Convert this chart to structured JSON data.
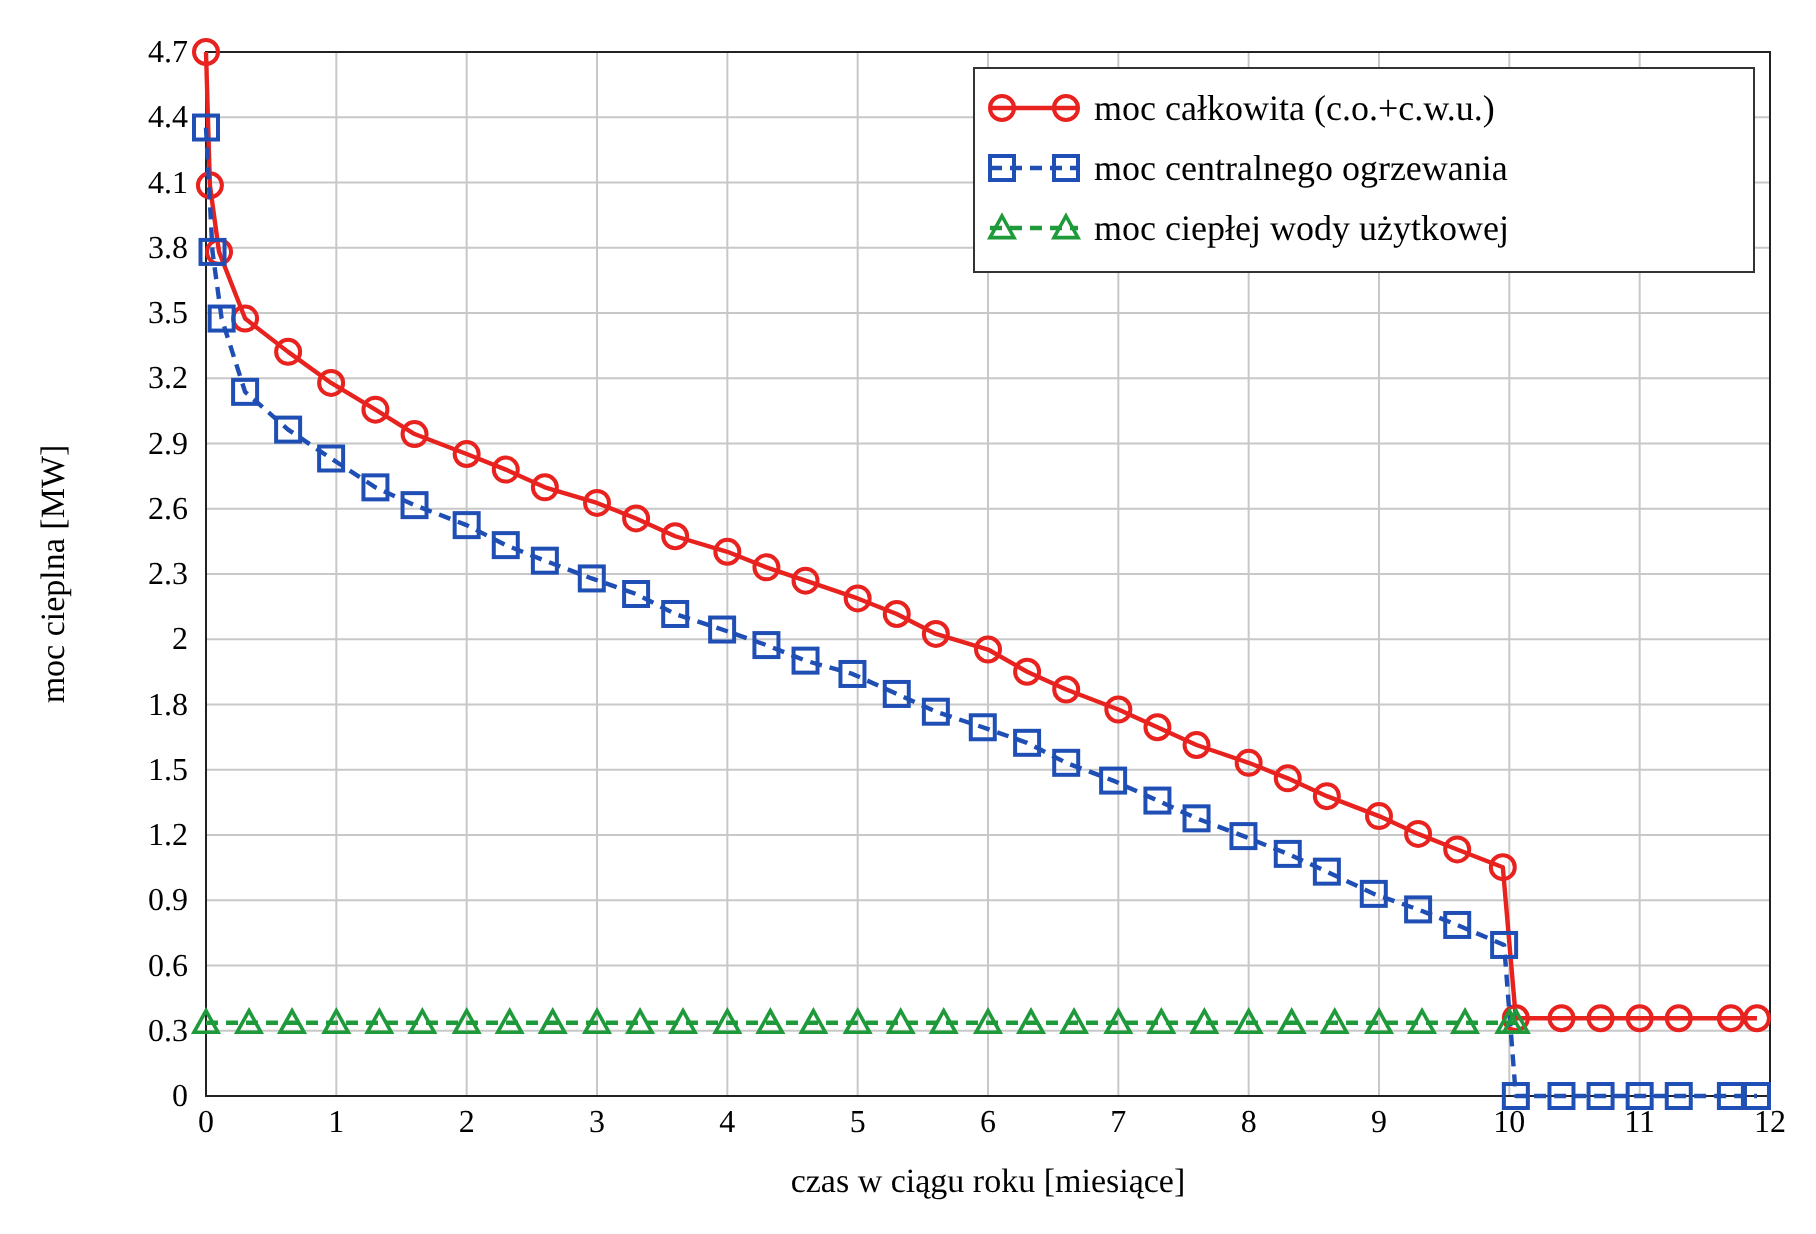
{
  "chart_data": {
    "type": "line",
    "xlabel": "czas w ciągu roku [miesiące]",
    "ylabel": "moc cieplna [MW]",
    "xlim": [
      0,
      12
    ],
    "ylim": [
      0,
      4.7
    ],
    "xticks": [
      0,
      1,
      2,
      3,
      4,
      5,
      6,
      7,
      8,
      9,
      10,
      11,
      12
    ],
    "yticks": [
      0,
      {
        "value": 0.2938,
        "label": "0.3"
      },
      {
        "value": 0.5875,
        "label": "0.6"
      },
      {
        "value": 0.8813,
        "label": "0.9"
      },
      {
        "value": 1.175,
        "label": "1.2"
      },
      {
        "value": 1.4688,
        "label": "1.5"
      },
      {
        "value": 1.7625,
        "label": "1.8"
      },
      {
        "value": 2.0563,
        "label": "2"
      },
      {
        "value": 2.35,
        "label": "2.3"
      },
      {
        "value": 2.6438,
        "label": "2.6"
      },
      {
        "value": 2.9375,
        "label": "2.9"
      },
      {
        "value": 3.2313,
        "label": "3.2"
      },
      {
        "value": 3.525,
        "label": "3.5"
      },
      {
        "value": 3.8188,
        "label": "3.8"
      },
      {
        "value": 4.1125,
        "label": "4.1"
      },
      {
        "value": 4.4063,
        "label": "4.4"
      },
      {
        "value": 4.7,
        "label": "4.7"
      }
    ],
    "grid": true,
    "legend": "top right",
    "series": [
      {
        "name": "moc całkowita (c.o.+c.w.u.)",
        "color": "#e8231f",
        "marker": "circle",
        "line_style": "solid",
        "x": [
          0,
          0.03,
          0.1,
          0.3,
          0.63,
          0.96,
          1.3,
          1.6,
          2,
          2.3,
          2.6,
          3,
          3.3,
          3.6,
          4,
          4.3,
          4.6,
          5,
          5.3,
          5.6,
          6,
          6.3,
          6.6,
          7,
          7.3,
          7.6,
          8,
          8.3,
          8.6,
          9,
          9.3,
          9.6,
          9.95,
          10.05,
          10.4,
          10.7,
          11,
          11.3,
          11.7,
          11.9
        ],
        "values": [
          4.7,
          4.1,
          3.8,
          3.5,
          3.35,
          3.21,
          3.09,
          2.98,
          2.89,
          2.82,
          2.74,
          2.67,
          2.6,
          2.52,
          2.45,
          2.38,
          2.32,
          2.24,
          2.17,
          2.08,
          2.01,
          1.91,
          1.83,
          1.74,
          1.66,
          1.58,
          1.5,
          1.43,
          1.35,
          1.26,
          1.18,
          1.11,
          1.03,
          0.35,
          0.35,
          0.35,
          0.35,
          0.35,
          0.35,
          0.35
        ]
      },
      {
        "name": "moc centralnego ogrzewania",
        "color": "#1f4fb4",
        "marker": "square",
        "line_style": "dashed",
        "x": [
          0,
          0.05,
          0.12,
          0.3,
          0.63,
          0.96,
          1.3,
          1.6,
          2,
          2.3,
          2.6,
          2.96,
          3.3,
          3.6,
          3.96,
          4.3,
          4.6,
          4.96,
          5.3,
          5.6,
          5.96,
          6.3,
          6.6,
          6.96,
          7.3,
          7.6,
          7.96,
          8.3,
          8.6,
          8.96,
          9.3,
          9.6,
          9.96,
          10.05,
          10.4,
          10.7,
          11,
          11.3,
          11.7,
          11.9
        ],
        "values": [
          4.36,
          3.8,
          3.5,
          3.17,
          3,
          2.87,
          2.74,
          2.66,
          2.57,
          2.48,
          2.41,
          2.33,
          2.26,
          2.17,
          2.1,
          2.03,
          1.96,
          1.9,
          1.81,
          1.73,
          1.66,
          1.59,
          1.5,
          1.42,
          1.33,
          1.25,
          1.17,
          1.09,
          1.01,
          0.91,
          0.84,
          0.77,
          0.68,
          0,
          0,
          0,
          0,
          0,
          0,
          0
        ]
      },
      {
        "name": "moc ciepłej wody użytkowej",
        "color": "#1f9a3a",
        "marker": "triangle",
        "line_style": "dashed",
        "x": [
          0,
          0.33,
          0.66,
          1,
          1.33,
          1.66,
          2,
          2.33,
          2.66,
          3,
          3.33,
          3.66,
          4,
          4.33,
          4.66,
          5,
          5.33,
          5.66,
          6,
          6.33,
          6.66,
          7,
          7.33,
          7.66,
          8,
          8.33,
          8.66,
          9,
          9.33,
          9.66,
          10,
          10.05
        ],
        "values": [
          0.33,
          0.33,
          0.33,
          0.33,
          0.33,
          0.33,
          0.33,
          0.33,
          0.33,
          0.33,
          0.33,
          0.33,
          0.33,
          0.33,
          0.33,
          0.33,
          0.33,
          0.33,
          0.33,
          0.33,
          0.33,
          0.33,
          0.33,
          0.33,
          0.33,
          0.33,
          0.33,
          0.33,
          0.33,
          0.33,
          0.33,
          0.33
        ]
      }
    ]
  }
}
